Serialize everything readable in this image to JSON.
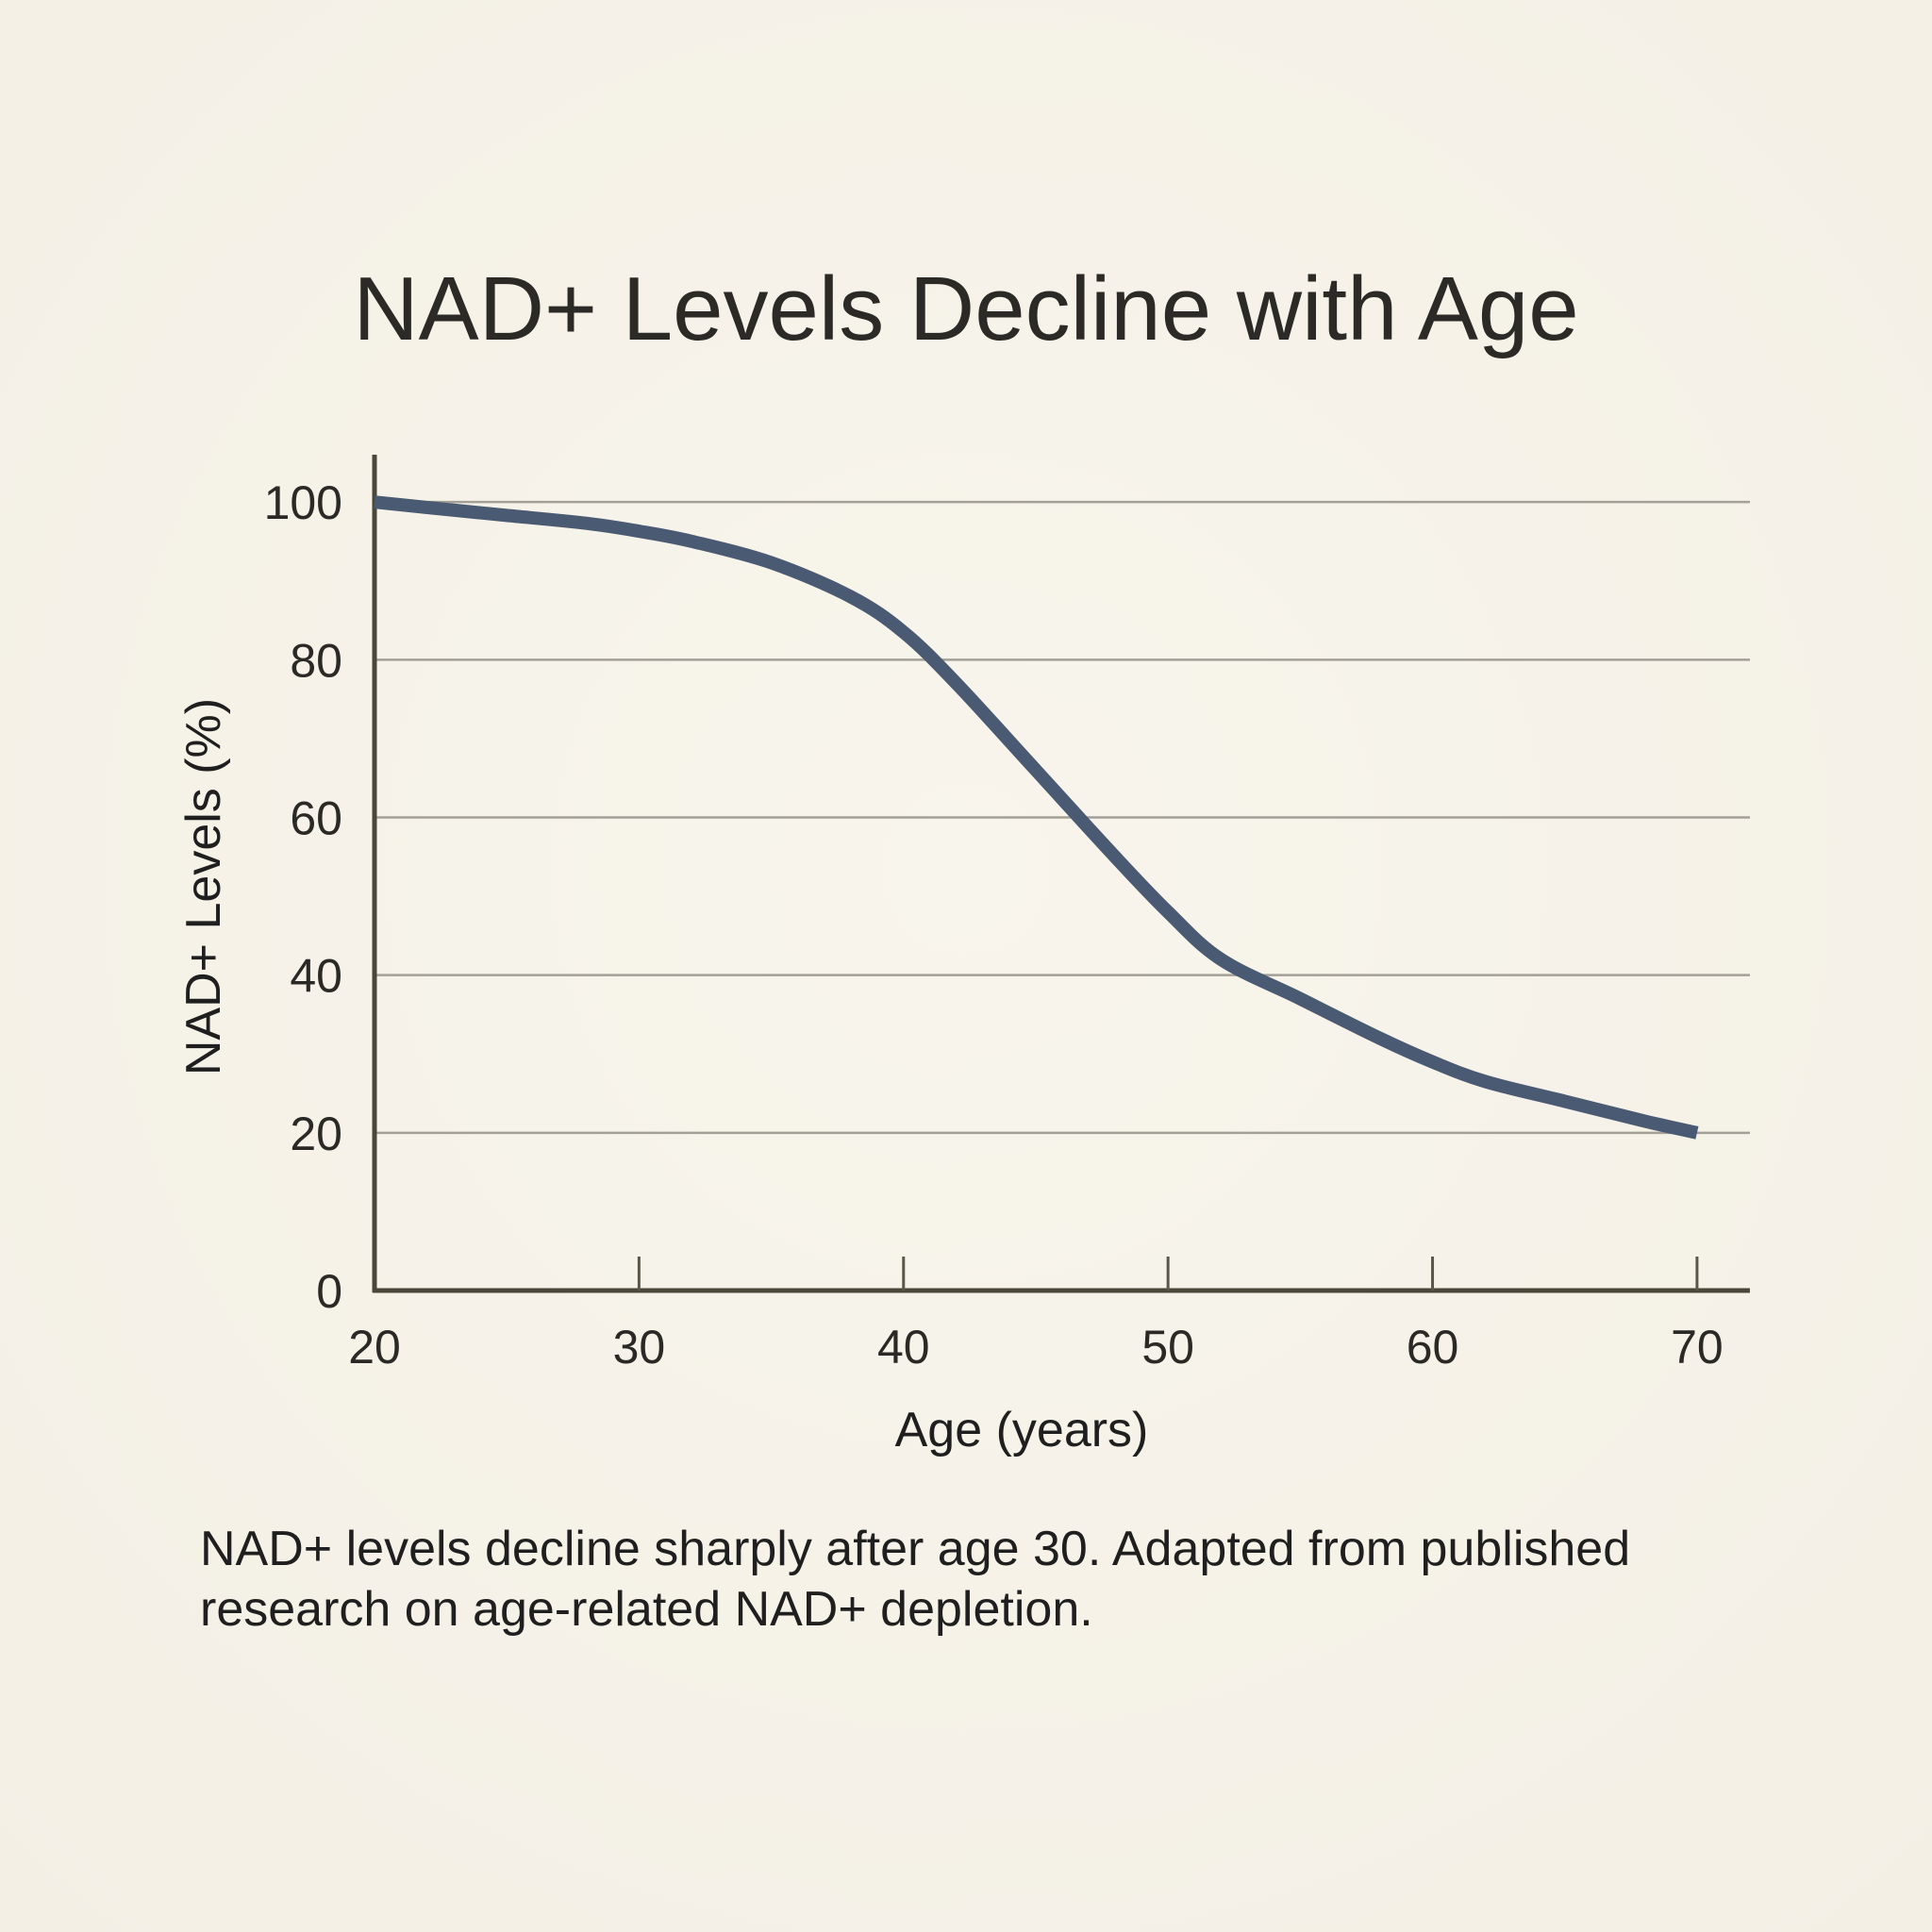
{
  "chart_data": {
    "type": "line",
    "title": "NAD+ Levels Decline with Age",
    "xlabel": "Age (years)",
    "ylabel": "NAD+ Levels (%)",
    "xlim": [
      20,
      72
    ],
    "ylim": [
      0,
      106
    ],
    "xticks": [
      "20",
      "30",
      "40",
      "50",
      "60",
      "70"
    ],
    "yticks": [
      "0",
      "20",
      "40",
      "60",
      "80",
      "100"
    ],
    "grid": "horizontal",
    "series": [
      {
        "color": "#4a5a72",
        "x": [
          20,
          22,
          25,
          28,
          30,
          32,
          35,
          38,
          40,
          42,
          45,
          48,
          50,
          52,
          55,
          58,
          60,
          62,
          65,
          68,
          70
        ],
        "y": [
          100,
          99.3,
          98.3,
          97.3,
          96.3,
          95,
          92.3,
          88,
          83.5,
          77,
          66,
          55,
          48,
          42,
          37,
          32,
          29,
          26.5,
          24,
          21.5,
          20
        ]
      }
    ]
  },
  "caption": "NAD+ levels decline sharply after age 30. Adapted from published research on age-related NAD+ depletion."
}
